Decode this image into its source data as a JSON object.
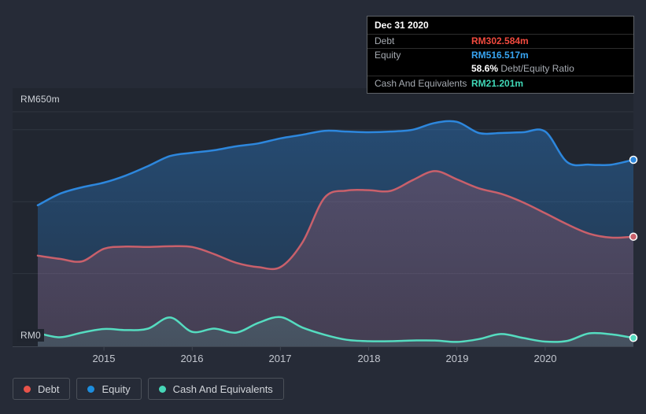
{
  "chart_data": {
    "type": "area",
    "title": "",
    "x": [
      "Mar 2014",
      "Jun 2014",
      "Sep 2014",
      "Dec 2014",
      "Mar 2015",
      "Jun 2015",
      "Sep 2015",
      "Dec 2015",
      "Mar 2016",
      "Jun 2016",
      "Sep 2016",
      "Dec 2016",
      "Mar 2017",
      "Jun 2017",
      "Sep 2017",
      "Dec 2017",
      "Mar 2018",
      "Jun 2018",
      "Sep 2018",
      "Dec 2018",
      "Mar 2019",
      "Jun 2019",
      "Sep 2019",
      "Dec 2019",
      "Mar 2020",
      "Jun 2020",
      "Sep 2020",
      "Dec 2020"
    ],
    "series": [
      {
        "name": "Debt",
        "color": "#c9606b",
        "values": [
          250,
          241,
          234,
          269,
          275,
          274,
          276,
          274,
          254,
          230,
          218,
          218,
          287,
          411,
          431,
          432,
          430,
          460,
          485,
          462,
          437,
          422,
          398,
          368,
          337,
          311,
          300,
          302.584
        ]
      },
      {
        "name": "Equity",
        "color": "#2d87dd",
        "values": [
          390,
          422,
          440,
          453,
          473,
          499,
          527,
          536,
          543,
          554,
          562,
          576,
          586,
          597,
          595,
          593,
          595,
          600,
          619,
          622,
          591,
          591,
          593,
          595,
          510,
          503,
          503,
          516.517
        ]
      },
      {
        "name": "Cash And Equivalents",
        "color": "#55dcc0",
        "values": [
          35,
          23,
          36,
          46,
          43,
          47,
          78,
          38,
          47,
          36,
          63,
          79,
          50,
          30,
          16,
          12,
          12,
          14,
          14,
          10,
          18,
          32,
          21,
          11,
          13,
          34,
          31,
          21.201
        ]
      }
    ],
    "unit": "RM millions",
    "xlabel": "",
    "ylabel": "",
    "ylim": [
      0,
      650
    ],
    "x_tick_labels": [
      "2015",
      "2016",
      "2017",
      "2018",
      "2019",
      "2020"
    ],
    "y_axis": {
      "top_label": "RM650m",
      "bottom_label": "RM0",
      "gridlines_at": [
        650,
        600,
        400,
        200,
        0
      ]
    },
    "grid": "horizontal",
    "legend_position": "bottom"
  },
  "tooltip": {
    "title": "Dec 31 2020",
    "debt_label": "Debt",
    "debt_value": "RM302.584m",
    "debt_color": "#f24a3e",
    "equity_label": "Equity",
    "equity_value": "RM516.517m",
    "equity_color": "#38a5f2",
    "ratio_value": "58.6%",
    "ratio_label": "Debt/Equity Ratio",
    "cash_label": "Cash And Equivalents",
    "cash_value": "RM21.201m",
    "cash_color": "#40d9b8"
  },
  "legend": {
    "items": [
      {
        "label": "Debt",
        "color": "#e8534a"
      },
      {
        "label": "Equity",
        "color": "#1d8ede"
      },
      {
        "label": "Cash And Equivalents",
        "color": "#47d7b8"
      }
    ]
  }
}
